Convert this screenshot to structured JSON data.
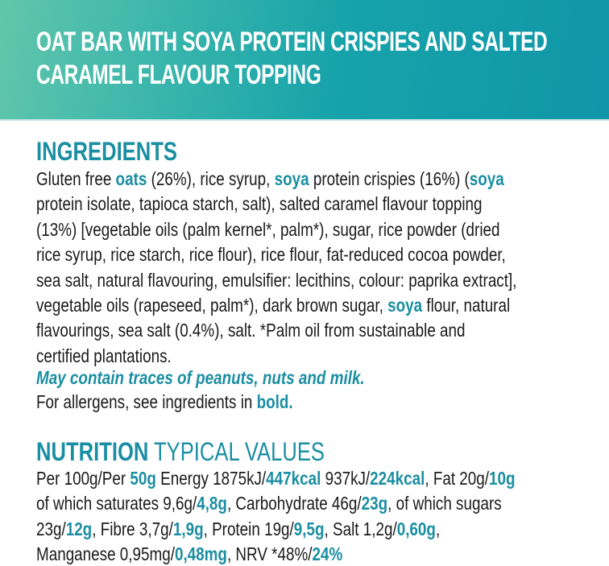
{
  "colors": {
    "teal": "#1a8ea2",
    "header_left": "#62c6ab",
    "header_right": "#0f96a8"
  },
  "title": [
    "OAT BAR WITH SOYA PROTEIN CRISPIES AND SALTED",
    "CARAMEL FLAVOUR TOPPING"
  ],
  "ingredients": {
    "heading": "INGREDIENTS",
    "lines": [
      [
        {
          "t": "Gluten free "
        },
        {
          "t": "oats",
          "b": true
        },
        {
          "t": " (26%), rice syrup, "
        },
        {
          "t": "soya",
          "b": true
        },
        {
          "t": " protein crispies (16%) ("
        },
        {
          "t": "soya",
          "b": true
        }
      ],
      [
        {
          "t": "protein isolate, tapioca starch, salt), salted caramel flavour topping"
        }
      ],
      [
        {
          "t": "(13%) [vegetable oils (palm kernel*, palm*), sugar, rice powder (dried"
        }
      ],
      [
        {
          "t": "rice syrup, rice starch, rice flour), rice flour, fat-reduced cocoa powder,"
        }
      ],
      [
        {
          "t": "sea salt, natural flavouring, emulsifier: lecithins, colour: paprika extract],"
        }
      ],
      [
        {
          "t": "vegetable oils (rapeseed, palm*), dark brown sugar, "
        },
        {
          "t": "soya",
          "b": true
        },
        {
          "t": " flour, natural"
        }
      ],
      [
        {
          "t": "flavourings, sea salt (0.4%), salt. *Palm oil from sustainable and"
        }
      ],
      [
        {
          "t": "certified plantations."
        }
      ]
    ],
    "traces": "May contain traces of peanuts, nuts and milk.",
    "allergens": [
      {
        "t": "For allergens, see ingredients in "
      },
      {
        "t": "bold.",
        "b": true
      }
    ]
  },
  "nutrition": {
    "heading_bold": "NUTRITION",
    "heading_light": "TYPICAL VALUES",
    "lines": [
      [
        {
          "t": "Per 100g/Per "
        },
        {
          "t": "50g",
          "b": true
        },
        {
          "t": " Energy 1875kJ/"
        },
        {
          "t": "447kcal",
          "b": true
        },
        {
          "t": " 937kJ/"
        },
        {
          "t": "224kcal",
          "b": true
        },
        {
          "t": ", Fat 20g/"
        },
        {
          "t": "10g",
          "b": true
        }
      ],
      [
        {
          "t": "of which saturates 9,6g/"
        },
        {
          "t": "4,8g",
          "b": true
        },
        {
          "t": ", Carbohydrate 46g/"
        },
        {
          "t": "23g",
          "b": true
        },
        {
          "t": ", of which sugars"
        }
      ],
      [
        {
          "t": "23g/"
        },
        {
          "t": "12g",
          "b": true
        },
        {
          "t": ", Fibre 3,7g/"
        },
        {
          "t": "1,9g",
          "b": true
        },
        {
          "t": ", Protein 19g/"
        },
        {
          "t": "9,5g",
          "b": true
        },
        {
          "t": ", Salt 1,2g/"
        },
        {
          "t": "0,60g",
          "b": true
        },
        {
          "t": ","
        }
      ],
      [
        {
          "t": "Manganese 0,95mg/"
        },
        {
          "t": "0,48mg",
          "b": true
        },
        {
          "t": ", NRV *48%/"
        },
        {
          "t": "24%",
          "b": true
        }
      ]
    ]
  }
}
